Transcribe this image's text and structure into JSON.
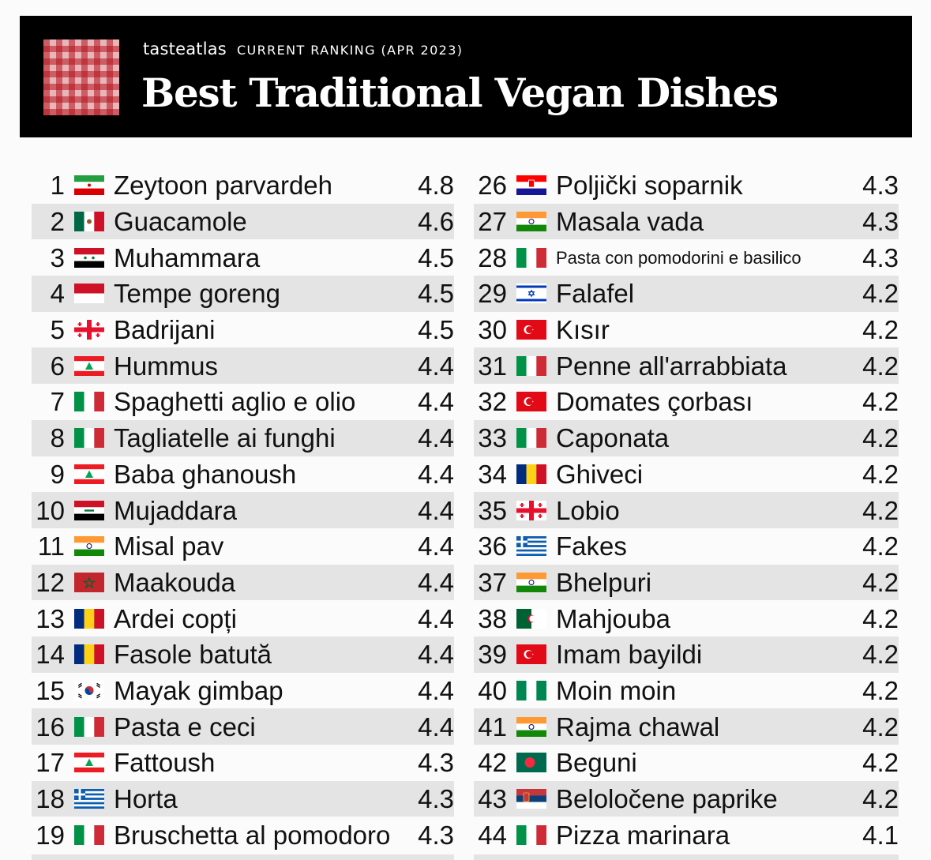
{
  "header": {
    "brand": "tasteatlas",
    "subtitle": "CURRENT RANKING (APR 2023)",
    "title": "Best Traditional Vegan Dishes"
  },
  "left_rows": [
    {
      "rank": "1",
      "flag": "iran-flag-icon",
      "name": "Zeytoon parvardeh",
      "score": "4.8"
    },
    {
      "rank": "2",
      "flag": "mexico-flag-icon",
      "name": "Guacamole",
      "score": "4.6"
    },
    {
      "rank": "3",
      "flag": "syria-flag-icon",
      "name": "Muhammara",
      "score": "4.5"
    },
    {
      "rank": "4",
      "flag": "indonesia-flag-icon",
      "name": "Tempe goreng",
      "score": "4.5"
    },
    {
      "rank": "5",
      "flag": "georgia-flag-icon",
      "name": "Badrijani",
      "score": "4.5"
    },
    {
      "rank": "6",
      "flag": "lebanon-flag-icon",
      "name": "Hummus",
      "score": "4.4"
    },
    {
      "rank": "7",
      "flag": "italy-flag-icon",
      "name": "Spaghetti aglio e olio",
      "score": "4.4"
    },
    {
      "rank": "8",
      "flag": "italy-flag-icon",
      "name": "Tagliatelle ai funghi",
      "score": "4.4"
    },
    {
      "rank": "9",
      "flag": "lebanon-flag-icon",
      "name": "Baba ghanoush",
      "score": "4.4"
    },
    {
      "rank": "10",
      "flag": "iraq-flag-icon",
      "name": "Mujaddara",
      "score": "4.4"
    },
    {
      "rank": "11",
      "flag": "india-flag-icon",
      "name": "Misal pav",
      "score": "4.4"
    },
    {
      "rank": "12",
      "flag": "morocco-flag-icon",
      "name": "Maakouda",
      "score": "4.4"
    },
    {
      "rank": "13",
      "flag": "romania-flag-icon",
      "name": "Ardei copți",
      "score": "4.4"
    },
    {
      "rank": "14",
      "flag": "romania-flag-icon",
      "name": "Fasole batută",
      "score": "4.4"
    },
    {
      "rank": "15",
      "flag": "south-korea-flag-icon",
      "name": "Mayak gimbap",
      "score": "4.4"
    },
    {
      "rank": "16",
      "flag": "italy-flag-icon",
      "name": "Pasta e ceci",
      "score": "4.4"
    },
    {
      "rank": "17",
      "flag": "lebanon-flag-icon",
      "name": "Fattoush",
      "score": "4.3"
    },
    {
      "rank": "18",
      "flag": "greece-flag-icon",
      "name": "Horta",
      "score": "4.3"
    },
    {
      "rank": "19",
      "flag": "italy-flag-icon",
      "name": "Bruschetta al pomodoro",
      "score": "4.3"
    }
  ],
  "right_rows": [
    {
      "rank": "26",
      "flag": "croatia-flag-icon",
      "name": "Poljički soparnik",
      "score": "4.3"
    },
    {
      "rank": "27",
      "flag": "india-flag-icon",
      "name": "Masala vada",
      "score": "4.3"
    },
    {
      "rank": "28",
      "flag": "italy-flag-icon",
      "name": "Pasta con pomodorini e basilico",
      "score": "4.3"
    },
    {
      "rank": "29",
      "flag": "israel-flag-icon",
      "name": "Falafel",
      "score": "4.2"
    },
    {
      "rank": "30",
      "flag": "turkey-flag-icon",
      "name": "Kısır",
      "score": "4.2"
    },
    {
      "rank": "31",
      "flag": "italy-flag-icon",
      "name": "Penne all'arrabbiata",
      "score": "4.2"
    },
    {
      "rank": "32",
      "flag": "turkey-flag-icon",
      "name": "Domates çorbası",
      "score": "4.2"
    },
    {
      "rank": "33",
      "flag": "italy-flag-icon",
      "name": "Caponata",
      "score": "4.2"
    },
    {
      "rank": "34",
      "flag": "romania-flag-icon",
      "name": "Ghiveci",
      "score": "4.2"
    },
    {
      "rank": "35",
      "flag": "georgia-flag-icon",
      "name": "Lobio",
      "score": "4.2"
    },
    {
      "rank": "36",
      "flag": "greece-flag-icon",
      "name": "Fakes",
      "score": "4.2"
    },
    {
      "rank": "37",
      "flag": "india-flag-icon",
      "name": "Bhelpuri",
      "score": "4.2"
    },
    {
      "rank": "38",
      "flag": "algeria-flag-icon",
      "name": "Mahjouba",
      "score": "4.2"
    },
    {
      "rank": "39",
      "flag": "turkey-flag-icon",
      "name": "Imam bayildi",
      "score": "4.2"
    },
    {
      "rank": "40",
      "flag": "nigeria-flag-icon",
      "name": "Moin moin",
      "score": "4.2"
    },
    {
      "rank": "41",
      "flag": "india-flag-icon",
      "name": "Rajma chawal",
      "score": "4.2"
    },
    {
      "rank": "42",
      "flag": "bangladesh-flag-icon",
      "name": "Beguni",
      "score": "4.2"
    },
    {
      "rank": "43",
      "flag": "serbia-flag-icon",
      "name": "Beloločene paprike",
      "score": "4.2"
    },
    {
      "rank": "44",
      "flag": "italy-flag-icon",
      "name": "Pizza marinara",
      "score": "4.1"
    }
  ]
}
